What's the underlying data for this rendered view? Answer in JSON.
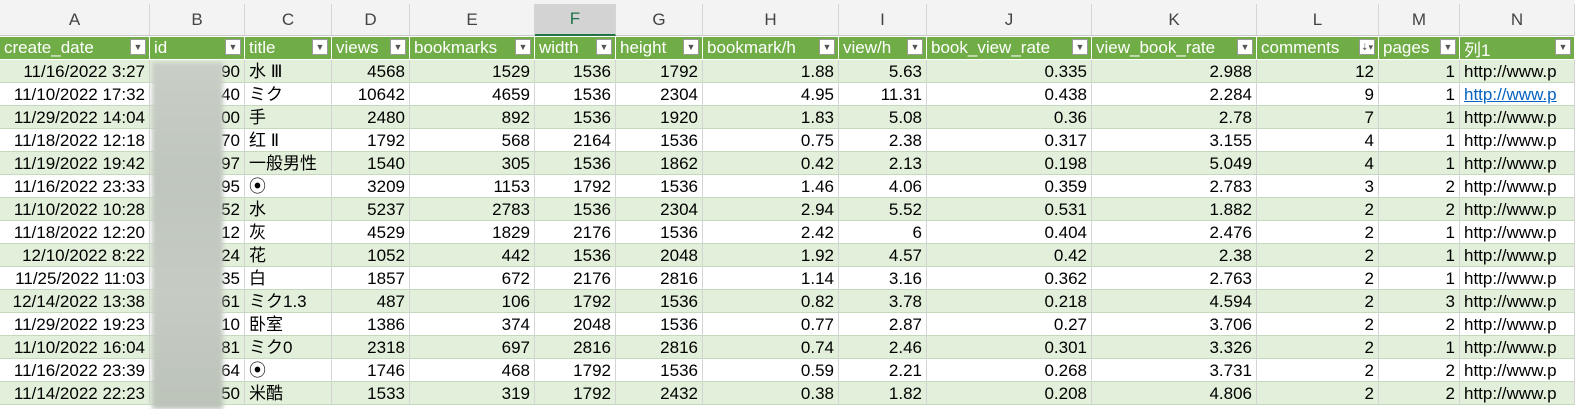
{
  "column_letters": [
    "A",
    "B",
    "C",
    "D",
    "E",
    "F",
    "G",
    "H",
    "I",
    "J",
    "K",
    "L",
    "M",
    "N"
  ],
  "selected_column": "F",
  "headers": [
    "create_date",
    "id",
    "title",
    "views",
    "bookmarks",
    "width",
    "height",
    "bookmark/h",
    "view/h",
    "book_view_rate",
    "view_book_rate",
    "comments",
    "pages",
    "列1"
  ],
  "sort_indicator_column": "comments",
  "rows": [
    [
      "11/16/2022 3:27",
      "90",
      "水 Ⅲ",
      "4568",
      "1529",
      "1536",
      "1792",
      "1.88",
      "5.63",
      "0.335",
      "2.988",
      "12",
      "1",
      "http://www.p"
    ],
    [
      "11/10/2022 17:32",
      "40",
      "ミク",
      "10642",
      "4659",
      "1536",
      "2304",
      "4.95",
      "11.31",
      "0.438",
      "2.284",
      "9",
      "1",
      "http://www.p"
    ],
    [
      "11/29/2022 14:04",
      "00",
      "手",
      "2480",
      "892",
      "1536",
      "1920",
      "1.83",
      "5.08",
      "0.36",
      "2.78",
      "7",
      "1",
      "http://www.p"
    ],
    [
      "11/18/2022 12:18",
      "70",
      "红 Ⅱ",
      "1792",
      "568",
      "2164",
      "1536",
      "0.75",
      "2.38",
      "0.317",
      "3.155",
      "4",
      "1",
      "http://www.p"
    ],
    [
      "11/19/2022 19:42",
      "97",
      "一般男性",
      "1540",
      "305",
      "1536",
      "1862",
      "0.42",
      "2.13",
      "0.198",
      "5.049",
      "4",
      "1",
      "http://www.p"
    ],
    [
      "11/16/2022 23:33",
      "95",
      "⦿",
      "3209",
      "1153",
      "1792",
      "1536",
      "1.46",
      "4.06",
      "0.359",
      "2.783",
      "3",
      "2",
      "http://www.p"
    ],
    [
      "11/10/2022 10:28",
      "52",
      "水",
      "5237",
      "2783",
      "1536",
      "2304",
      "2.94",
      "5.52",
      "0.531",
      "1.882",
      "2",
      "2",
      "http://www.p"
    ],
    [
      "11/18/2022 12:20",
      "12",
      "灰",
      "4529",
      "1829",
      "2176",
      "1536",
      "2.42",
      "6",
      "0.404",
      "2.476",
      "2",
      "1",
      "http://www.p"
    ],
    [
      "12/10/2022 8:22",
      "24",
      "花",
      "1052",
      "442",
      "1536",
      "2048",
      "1.92",
      "4.57",
      "0.42",
      "2.38",
      "2",
      "1",
      "http://www.p"
    ],
    [
      "11/25/2022 11:03",
      "35",
      "白",
      "1857",
      "672",
      "2176",
      "2816",
      "1.14",
      "3.16",
      "0.362",
      "2.763",
      "2",
      "1",
      "http://www.p"
    ],
    [
      "12/14/2022 13:38",
      "61",
      "ミク1.3",
      "487",
      "106",
      "1792",
      "1536",
      "0.82",
      "3.78",
      "0.218",
      "4.594",
      "2",
      "3",
      "http://www.p"
    ],
    [
      "11/29/2022 19:23",
      "10",
      "卧室",
      "1386",
      "374",
      "2048",
      "1536",
      "0.77",
      "2.87",
      "0.27",
      "3.706",
      "2",
      "2",
      "http://www.p"
    ],
    [
      "11/10/2022 16:04",
      "81",
      "ミク0",
      "2318",
      "697",
      "2816",
      "2816",
      "0.74",
      "2.46",
      "0.301",
      "3.326",
      "2",
      "1",
      "http://www.p"
    ],
    [
      "11/16/2022 23:39",
      "64",
      "⦿",
      "1746",
      "468",
      "1792",
      "1536",
      "0.59",
      "2.21",
      "0.268",
      "3.731",
      "2",
      "2",
      "http://www.p"
    ],
    [
      "11/14/2022 22:23",
      "50",
      "米酷",
      "1533",
      "319",
      "1792",
      "2432",
      "0.38",
      "1.82",
      "0.208",
      "4.806",
      "2",
      "2",
      "http://www.p"
    ]
  ],
  "link_row_index": 1,
  "colors": {
    "header_bg": "#70ad47",
    "band": "#e2efda",
    "link": "#0563c1"
  }
}
